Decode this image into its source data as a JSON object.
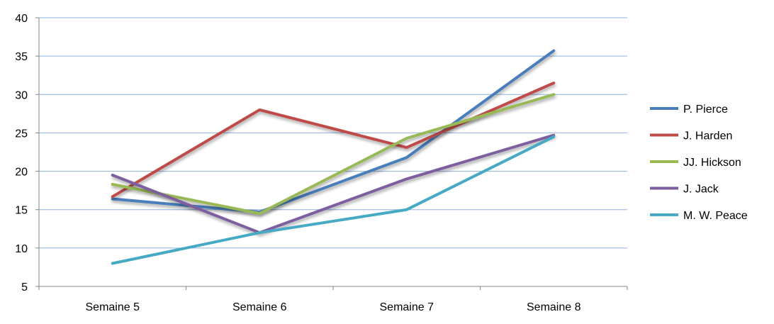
{
  "chart_data": {
    "type": "line",
    "title": "",
    "xlabel": "",
    "ylabel": "",
    "categories": [
      "Semaine 5",
      "Semaine 6",
      "Semaine 7",
      "Semaine 8"
    ],
    "ylim": [
      5,
      40
    ],
    "yticks": [
      5,
      10,
      15,
      20,
      25,
      30,
      35,
      40
    ],
    "grid": true,
    "legend_position": "right",
    "series": [
      {
        "name": "P. Pierce",
        "color": "#4a7ebb",
        "values": [
          16.4,
          14.7,
          21.8,
          35.7
        ]
      },
      {
        "name": "J. Harden",
        "color": "#be4b48",
        "values": [
          16.7,
          28,
          23.1,
          31.5
        ]
      },
      {
        "name": "JJ. Hickson",
        "color": "#98b954",
        "values": [
          18.3,
          14.5,
          24.3,
          30
        ]
      },
      {
        "name": "J. Jack",
        "color": "#7d5fa0",
        "values": [
          19.5,
          12,
          19,
          24.7
        ]
      },
      {
        "name": "M. W. Peace",
        "color": "#46aac5",
        "values": [
          8,
          12,
          15,
          24.5
        ]
      }
    ]
  }
}
